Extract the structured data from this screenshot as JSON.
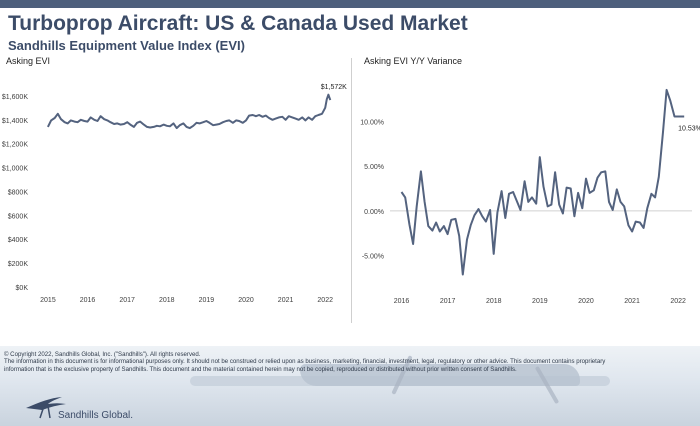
{
  "header": {
    "title": "Turboprop Aircraft:  US & Canada Used Market",
    "subtitle": "Sandhills Equipment Value Index (EVI)"
  },
  "colors": {
    "line": "#54637f",
    "header": "#3c4c68",
    "axis_text": "#404040",
    "band": "#4d5f7c"
  },
  "chart_data": [
    {
      "type": "line",
      "title": "Asking EVI",
      "ylim": [
        0,
        1800
      ],
      "xlim": [
        2014.85,
        2022.5
      ],
      "y_ticks": [
        0,
        200,
        400,
        600,
        800,
        1000,
        1200,
        1400,
        1600
      ],
      "y_tick_labels": [
        "$0K",
        "$200K",
        "$400K",
        "$600K",
        "$800K",
        "$1,000K",
        "$1,200K",
        "$1,400K",
        "$1,600K"
      ],
      "x_ticks": [
        2015,
        2016,
        2017,
        2018,
        2019,
        2020,
        2021,
        2022
      ],
      "x_tick_labels": [
        "2015",
        "2016",
        "2017",
        "2018",
        "2019",
        "2020",
        "2021",
        "2022"
      ],
      "grid": false,
      "annotation": {
        "text": "$1,572K",
        "x": 2022.04,
        "y": 1572
      },
      "series": [
        {
          "x": [
            2015.0,
            2015.08,
            2015.17,
            2015.25,
            2015.33,
            2015.42,
            2015.5,
            2015.58,
            2015.67,
            2015.75,
            2015.83,
            2015.92,
            2016.0,
            2016.08,
            2016.17,
            2016.25,
            2016.33,
            2016.42,
            2016.5,
            2016.58,
            2016.67,
            2016.75,
            2016.83,
            2016.92,
            2017.0,
            2017.08,
            2017.17,
            2017.25,
            2017.33,
            2017.42,
            2017.5,
            2017.58,
            2017.67,
            2017.75,
            2017.83,
            2017.92,
            2018.0,
            2018.08,
            2018.17,
            2018.25,
            2018.33,
            2018.42,
            2018.5,
            2018.58,
            2018.67,
            2018.75,
            2018.83,
            2018.92,
            2019.0,
            2019.08,
            2019.17,
            2019.25,
            2019.33,
            2019.42,
            2019.5,
            2019.58,
            2019.67,
            2019.75,
            2019.83,
            2019.92,
            2020.0,
            2020.08,
            2020.17,
            2020.25,
            2020.33,
            2020.42,
            2020.5,
            2020.58,
            2020.67,
            2020.75,
            2020.83,
            2020.92,
            2021.0,
            2021.08,
            2021.17,
            2021.25,
            2021.33,
            2021.42,
            2021.5,
            2021.58,
            2021.67,
            2021.75,
            2021.83,
            2021.92,
            2022.0,
            2022.04,
            2022.08,
            2022.13
          ],
          "y": [
            1340,
            1395,
            1415,
            1450,
            1405,
            1380,
            1370,
            1395,
            1385,
            1380,
            1400,
            1390,
            1385,
            1420,
            1400,
            1390,
            1430,
            1405,
            1395,
            1380,
            1365,
            1370,
            1360,
            1365,
            1380,
            1360,
            1340,
            1375,
            1385,
            1360,
            1340,
            1335,
            1340,
            1350,
            1345,
            1360,
            1350,
            1345,
            1370,
            1330,
            1355,
            1370,
            1340,
            1330,
            1350,
            1375,
            1370,
            1380,
            1390,
            1375,
            1355,
            1360,
            1365,
            1380,
            1390,
            1395,
            1375,
            1395,
            1390,
            1375,
            1395,
            1435,
            1440,
            1430,
            1440,
            1425,
            1435,
            1415,
            1400,
            1410,
            1420,
            1425,
            1400,
            1430,
            1420,
            1410,
            1400,
            1420,
            1395,
            1420,
            1400,
            1430,
            1440,
            1450,
            1500,
            1572,
            1610,
            1565
          ]
        }
      ]
    },
    {
      "type": "line",
      "title": "Asking EVI Y/Y Variance",
      "ylim": [
        -8.5,
        15.5
      ],
      "xlim": [
        2015.75,
        2022.3
      ],
      "y_ticks": [
        -5,
        0,
        5,
        10
      ],
      "y_tick_labels": [
        "-5.00%",
        "0.00%",
        "5.00%",
        "10.00%"
      ],
      "x_ticks": [
        2016,
        2017,
        2018,
        2019,
        2020,
        2021,
        2022
      ],
      "x_tick_labels": [
        "2016",
        "2017",
        "2018",
        "2019",
        "2020",
        "2021",
        "2022"
      ],
      "grid": false,
      "zero_line": true,
      "annotation": {
        "text": "10.53%",
        "x": 2022.13,
        "y": 10.53
      },
      "series": [
        {
          "x": [
            2016.0,
            2016.08,
            2016.17,
            2016.25,
            2016.33,
            2016.42,
            2016.5,
            2016.58,
            2016.67,
            2016.75,
            2016.83,
            2016.92,
            2017.0,
            2017.08,
            2017.17,
            2017.25,
            2017.33,
            2017.42,
            2017.5,
            2017.58,
            2017.67,
            2017.75,
            2017.83,
            2017.92,
            2018.0,
            2018.08,
            2018.17,
            2018.25,
            2018.33,
            2018.42,
            2018.5,
            2018.58,
            2018.67,
            2018.75,
            2018.83,
            2018.92,
            2019.0,
            2019.08,
            2019.17,
            2019.25,
            2019.33,
            2019.42,
            2019.5,
            2019.58,
            2019.67,
            2019.75,
            2019.83,
            2019.92,
            2020.0,
            2020.08,
            2020.17,
            2020.25,
            2020.33,
            2020.42,
            2020.5,
            2020.58,
            2020.67,
            2020.75,
            2020.83,
            2020.92,
            2021.0,
            2021.08,
            2021.17,
            2021.25,
            2021.33,
            2021.42,
            2021.5,
            2021.58,
            2021.67,
            2021.75,
            2021.83,
            2021.92,
            2022.0,
            2022.08,
            2022.13
          ],
          "y": [
            2.1,
            1.5,
            -1.5,
            -3.7,
            0.5,
            4.4,
            1.0,
            -1.7,
            -2.2,
            -1.3,
            -2.3,
            -1.7,
            -2.6,
            -1.0,
            -0.9,
            -2.8,
            -7.1,
            -3.2,
            -1.6,
            -0.5,
            0.2,
            -0.6,
            -1.2,
            0.1,
            -4.8,
            -0.2,
            2.2,
            -0.8,
            1.9,
            2.1,
            1.1,
            0.1,
            3.3,
            1.0,
            1.5,
            0.8,
            6.0,
            2.7,
            0.5,
            0.7,
            4.3,
            0.7,
            -0.3,
            2.6,
            2.5,
            -0.6,
            2.0,
            0.3,
            3.6,
            2.0,
            2.3,
            3.7,
            4.3,
            4.4,
            1.0,
            0.1,
            2.4,
            1.0,
            0.5,
            -1.6,
            -2.3,
            -1.2,
            -1.3,
            -1.9,
            0.3,
            1.9,
            1.5,
            3.8,
            8.8,
            13.5,
            12.3,
            10.53,
            10.53,
            10.53,
            10.53
          ]
        }
      ]
    }
  ],
  "footer": {
    "copyright": "© Copyright 2022, Sandhills Global, Inc. (\"Sandhills\"). All rights reserved.",
    "disclaimer_1": "The information in this document is for informational purposes only.  It should not be construed or relied upon as business, marketing, financial, investment, legal, regulatory or other advice. This document contains proprietary",
    "disclaimer_2": "information that is the exclusive property of Sandhills. This document and the material contained herein may not be copied, reproduced or distributed without prior written consent of Sandhills.",
    "logo_text": "Sandhills Global."
  }
}
